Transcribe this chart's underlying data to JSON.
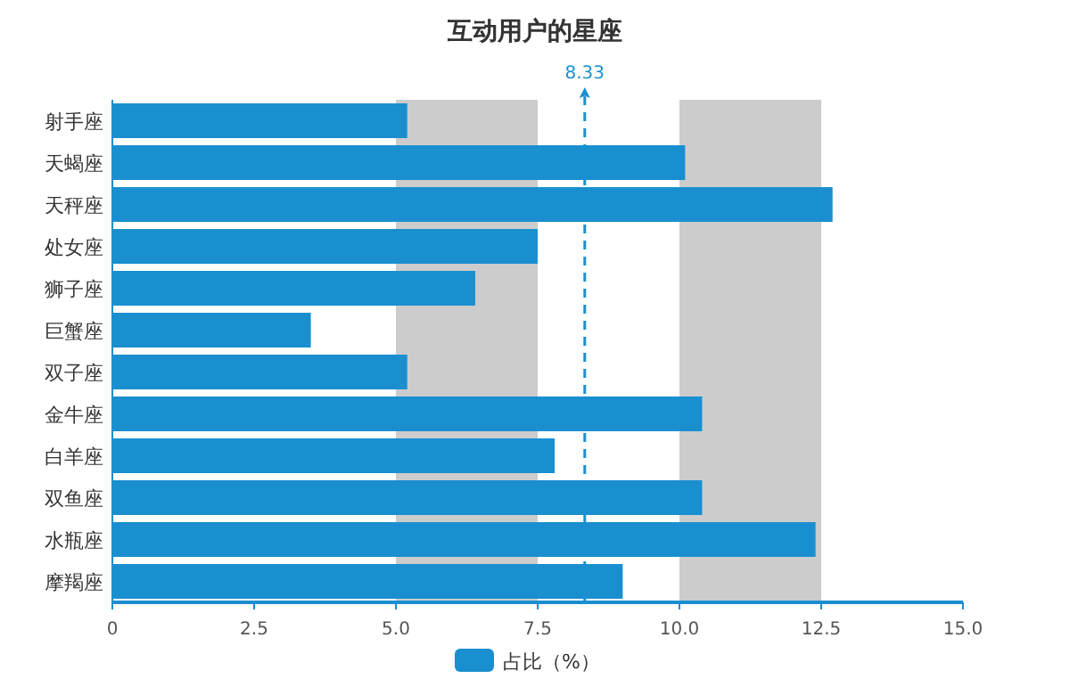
{
  "chart_data": {
    "type": "bar",
    "orientation": "horizontal",
    "title": "互动用户的星座",
    "categories": [
      "射手座",
      "天蝎座",
      "天秤座",
      "处女座",
      "狮子座",
      "巨蟹座",
      "双子座",
      "金牛座",
      "白羊座",
      "双鱼座",
      "水瓶座",
      "摩羯座"
    ],
    "series": [
      {
        "name": "占比（%）",
        "color": "#1a8fd0",
        "values": [
          5.2,
          10.1,
          12.7,
          7.5,
          6.4,
          3.5,
          5.2,
          10.4,
          7.8,
          10.4,
          12.4,
          9.0
        ]
      }
    ],
    "xlim": [
      0,
      15
    ],
    "xticks": [
      0,
      {
        "value": 2.5,
        "label": "2.5"
      },
      {
        "value": 5,
        "label": "5.0"
      },
      {
        "value": 7.5,
        "label": "7.5"
      },
      {
        "value": 10,
        "label": "10.0"
      },
      {
        "value": 12.5,
        "label": "12.5"
      },
      {
        "value": 15,
        "label": "15.0"
      }
    ],
    "bands": [
      {
        "axis": "x",
        "from": 5,
        "to": 7.5,
        "color": "#cccccc"
      },
      {
        "axis": "x",
        "from": 10,
        "to": 12.5,
        "color": "#cccccc"
      }
    ],
    "ref_lines": [
      {
        "axis": "x",
        "value": 8.33,
        "label": "8.33",
        "color": "#1a8fd0",
        "line_style": "dashed"
      }
    ],
    "legend": "bottom"
  }
}
